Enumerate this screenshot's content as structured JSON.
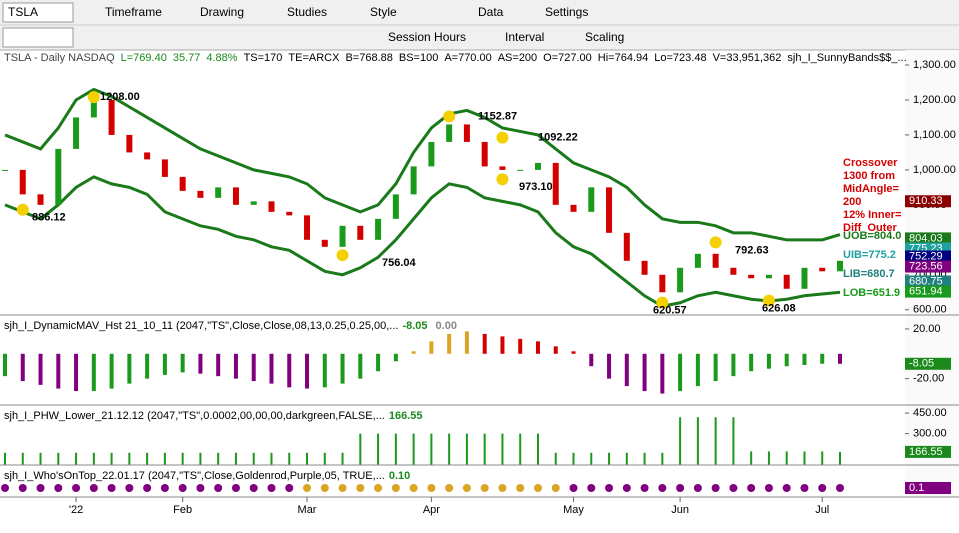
{
  "toolbar": {
    "symbol": "TSLA",
    "menus": [
      "Timeframe",
      "Drawing",
      "Studies",
      "Style",
      "Data",
      "Settings"
    ],
    "tools": [
      "Session Hours",
      "Interval",
      "Scaling"
    ]
  },
  "chart_data": {
    "type": "candlestick",
    "header": [
      "TSLA - Daily NASDAQ",
      "L=769.40",
      "35.77",
      "4.88%",
      "TS=170",
      "TE=ARCX",
      "B=768.88",
      "BS=100",
      "A=770.00",
      "AS=200",
      "O=727.00",
      "Hi=764.94",
      "Lo=723.48",
      "V=33,951,362",
      "sjh_I_SunnyBands$$_..."
    ],
    "categories": [
      null,
      null,
      null,
      null,
      "'22",
      null,
      null,
      null,
      null,
      null,
      "Feb",
      null,
      null,
      null,
      null,
      null,
      null,
      "Mar",
      null,
      null,
      null,
      null,
      null,
      null,
      "Apr",
      null,
      null,
      null,
      null,
      null,
      null,
      null,
      "May",
      null,
      null,
      null,
      null,
      null,
      "Jun",
      null,
      null,
      null,
      null,
      null,
      null,
      null,
      "Jul",
      null
    ],
    "closes": [
      1000,
      930,
      900,
      1060,
      1150,
      1200,
      1100,
      1050,
      1030,
      980,
      940,
      920,
      950,
      900,
      910,
      880,
      870,
      800,
      780,
      840,
      800,
      860,
      930,
      1010,
      1080,
      1130,
      1080,
      1010,
      1000,
      1000,
      1020,
      900,
      880,
      950,
      820,
      740,
      700,
      650,
      720,
      760,
      720,
      700,
      690,
      700,
      660,
      720,
      710,
      740
    ],
    "upper_band": [
      1100,
      1080,
      1060,
      1120,
      1200,
      1230,
      1210,
      1180,
      1150,
      1120,
      1090,
      1060,
      1040,
      1020,
      1000,
      990,
      980,
      960,
      920,
      900,
      880,
      900,
      960,
      1050,
      1120,
      1160,
      1170,
      1150,
      1120,
      1110,
      1100,
      1060,
      1020,
      1000,
      980,
      950,
      900,
      860,
      850,
      850,
      840,
      820,
      820,
      810,
      800,
      800,
      800,
      815
    ],
    "lower_band": [
      900,
      880,
      860,
      900,
      950,
      980,
      960,
      950,
      930,
      880,
      860,
      840,
      830,
      810,
      800,
      780,
      770,
      740,
      710,
      700,
      720,
      750,
      800,
      860,
      920,
      960,
      950,
      920,
      910,
      900,
      880,
      820,
      780,
      760,
      720,
      680,
      640,
      610,
      620,
      640,
      650,
      640,
      630,
      625,
      630,
      640,
      645,
      650
    ],
    "up_color": "#1a9a1a",
    "down_color": "#d40000",
    "band_color": "#1a7a1a",
    "ylim": [
      585,
      1320
    ],
    "yticks": [
      {
        "value": 1300,
        "label": "1,300.00"
      },
      {
        "value": 1200,
        "label": "1,200.00"
      },
      {
        "value": 1100,
        "label": "1,100.00"
      },
      {
        "value": 1000,
        "label": "1,000.00"
      },
      {
        "value": 900,
        "label": "900.00"
      },
      {
        "value": 800,
        "label": "800.00"
      },
      {
        "value": 700,
        "label": "700.00"
      },
      {
        "value": 600,
        "label": "600.00"
      }
    ],
    "annotations": [
      {
        "value": 1208,
        "label": "1208.00"
      },
      {
        "value": 886.12,
        "label": "886.12"
      },
      {
        "value": 756.04,
        "label": "756.04"
      },
      {
        "value": 1152.87,
        "label": "1152.87"
      },
      {
        "value": 1092.22,
        "label": "1092.22"
      },
      {
        "value": 973.1,
        "label": "973.10"
      },
      {
        "value": 792.63,
        "label": "792.63"
      },
      {
        "value": 620.57,
        "label": "620.57"
      },
      {
        "value": 626.08,
        "label": "626.08"
      }
    ],
    "crossover_note": [
      "Crossover",
      "1300 from",
      "MidAngle=",
      "200",
      "12% Inner=",
      "Diff_Outer"
    ],
    "band_labels": [
      "UOB=804.0",
      "UIB=775.2",
      "LIB=680.7",
      "LOB=651.9"
    ],
    "price_tags": [
      {
        "value": 910.33,
        "color": "#8b0000"
      },
      {
        "value": 804.03,
        "color": "#1a7a1a"
      },
      {
        "value": 775.23,
        "color": "#20a0a0"
      },
      {
        "value": 752.29,
        "color": "#000080"
      },
      {
        "value": 723.56,
        "color": "#800080"
      },
      {
        "value": 680.75,
        "color": "#208080"
      },
      {
        "value": 651.94,
        "color": "#1a9a1a"
      }
    ],
    "panes": [
      {
        "title": "sjh_I_DynamicMAV_Hst 21_10_11 (2047,\"TS\",Close,Close,08,13,0.25,0.25,00,...",
        "readouts": [
          "-8.05",
          "0.00"
        ],
        "tag": -8.05,
        "ylim": [
          -38,
          28
        ],
        "yticks": [
          {
            "value": 20,
            "label": "20.00"
          },
          {
            "value": -20,
            "label": "-20.00"
          }
        ],
        "values": [
          -18,
          -22,
          -25,
          -28,
          -30,
          -30,
          -28,
          -24,
          -20,
          -17,
          -15,
          -16,
          -18,
          -20,
          -22,
          -24,
          -27,
          -28,
          -27,
          -24,
          -20,
          -14,
          -6,
          2,
          10,
          16,
          18,
          16,
          14,
          12,
          10,
          6,
          2,
          -10,
          -20,
          -26,
          -30,
          -32,
          -30,
          -26,
          -22,
          -18,
          -14,
          -12,
          -10,
          -9,
          -8,
          -8.05
        ]
      },
      {
        "title": "sjh_I_PHW_Lower_21.12.12 (2047,\"TS\",0.0002,00,00,00,darkgreen,FALSE,...",
        "readouts": [
          "166.55"
        ],
        "tag": 166.55,
        "color": "#1a9a1a",
        "ylim": [
          100,
          480
        ],
        "yticks": [
          {
            "value": 450,
            "label": "450.00"
          },
          {
            "value": 300,
            "label": "300.00"
          },
          {
            "value": 150,
            "label": "150.00"
          }
        ],
        "values": [
          160,
          160,
          160,
          160,
          160,
          160,
          160,
          160,
          160,
          160,
          160,
          160,
          160,
          160,
          160,
          160,
          160,
          160,
          160,
          160,
          300,
          300,
          300,
          300,
          300,
          300,
          300,
          300,
          300,
          300,
          300,
          160,
          160,
          160,
          160,
          160,
          160,
          160,
          420,
          420,
          420,
          420,
          170,
          170,
          170,
          170,
          170,
          166.55
        ]
      },
      {
        "title": "sjh_I_Who'sOnTop_22.01.17 (2047,\"TS\",Close,Goldenrod,Purple,05, TRUE,...",
        "readouts": [
          "0.10"
        ],
        "tag": 0.1,
        "dot_colors": [
          "#800080",
          "#800080",
          "#800080",
          "#800080",
          "#800080",
          "#800080",
          "#800080",
          "#800080",
          "#800080",
          "#800080",
          "#800080",
          "#800080",
          "#800080",
          "#800080",
          "#800080",
          "#800080",
          "#800080",
          "#daa520",
          "#daa520",
          "#daa520",
          "#daa520",
          "#daa520",
          "#daa520",
          "#daa520",
          "#daa520",
          "#daa520",
          "#daa520",
          "#daa520",
          "#daa520",
          "#daa520",
          "#daa520",
          "#daa520",
          "#800080",
          "#800080",
          "#800080",
          "#800080",
          "#800080",
          "#800080",
          "#800080",
          "#800080",
          "#800080",
          "#800080",
          "#800080",
          "#800080",
          "#800080",
          "#800080",
          "#800080",
          "#800080"
        ]
      }
    ]
  }
}
